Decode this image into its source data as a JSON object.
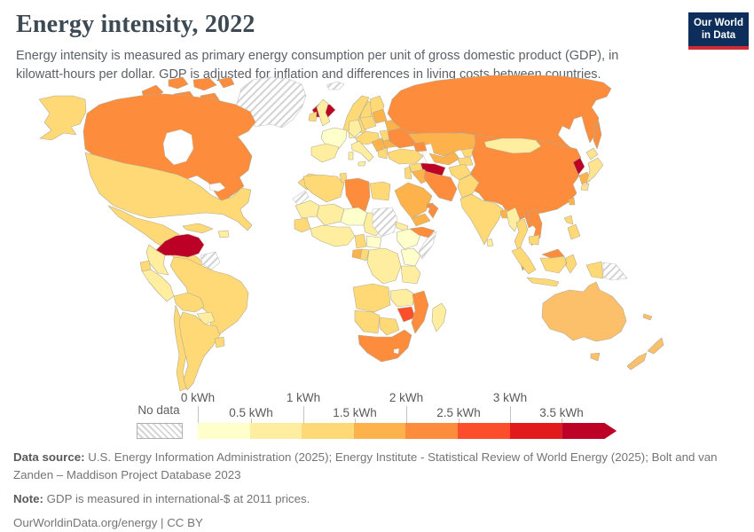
{
  "header": {
    "title": "Energy intensity, 2022",
    "subtitle": "Energy intensity is measured as primary energy consumption per unit of gross domestic product (GDP), in kilowatt-hours per dollar. GDP is adjusted for inflation and differences in living costs between countries.",
    "logo": {
      "line1": "Our World",
      "line2": "in Data",
      "bg_color": "#0d2e5a",
      "accent_color": "#cf2b34"
    }
  },
  "legend": {
    "no_data_label": "No data",
    "ticks": [
      "0 kWh",
      "0.5 kWh",
      "1 kWh",
      "1.5 kWh",
      "2 kWh",
      "2.5 kWh",
      "3 kWh",
      "3.5 kWh"
    ]
  },
  "footer": {
    "data_source_label": "Data source:",
    "data_source_text": " U.S. Energy Information Administration (2025); Energy Institute - Statistical Review of World Energy (2025); Bolt and van Zanden – Maddison Project Database 2023",
    "note_label": "Note:",
    "note_text": " GDP is measured in international-$ at 2011 prices.",
    "link_text": "OurWorldinData.org/energy",
    "separator": " | ",
    "license_text": "CC BY"
  },
  "chart_data": {
    "type": "heatmap",
    "subtype": "choropleth-world-map",
    "title": "Energy intensity, 2022",
    "unit": "kilowatt-hours per dollar (kWh/$)",
    "legend_position": "bottom",
    "bins": [
      {
        "range": "0–0.5 kWh",
        "color": "#ffffcc"
      },
      {
        "range": "0.5–1 kWh",
        "color": "#ffeda0"
      },
      {
        "range": "1–1.5 kWh",
        "color": "#fed976"
      },
      {
        "range": "1.5–2 kWh",
        "color": "#feb24c"
      },
      {
        "range": "2–2.5 kWh",
        "color": "#fd8d3c"
      },
      {
        "range": "2.5–3 kWh",
        "color": "#fc4e2a"
      },
      {
        "range": "3–3.5 kWh",
        "color": "#e31a1c"
      },
      {
        "range": "3.5+ kWh",
        "color": "#bd0026"
      }
    ],
    "no_data_style": "hatch",
    "countries": {
      "greenland": "no-data",
      "svalbard": "no-data",
      "iceland": "#bd0026",
      "canada": "#fd8d3c",
      "canadian-arctic": "#fd8d3c",
      "alaska": "#fed976",
      "usa": "#fed976",
      "mexico": "#fed976",
      "central-america": "#fed976",
      "cuba": "#fed976",
      "hispaniola": "#ffeda0",
      "venezuela": "#bd0026",
      "colombia": "#ffeda0",
      "guyana-suriname": "no-data",
      "brazil": "#fed976",
      "ecuador": "#fed976",
      "peru": "#ffeda0",
      "bolivia": "#fed976",
      "paraguay": "#ffeda0",
      "chile": "#fed976",
      "argentina": "#fed976",
      "uruguay": "#fed976",
      "norway": "#fed976",
      "sweden": "#fed976",
      "finland": "#fed976",
      "denmark": "#ffeda0",
      "united-kingdom": "#ffeda0",
      "ireland": "#fed976",
      "france": "#ffffcc",
      "spain": "#ffeda0",
      "germany": "#ffeda0",
      "poland": "#fed976",
      "central-europe": "#fed976",
      "italy": "#ffeda0",
      "balkans": "#feb24c",
      "romania": "#fed976",
      "bulgaria": "#feb24c",
      "greece": "#fed976",
      "baltics": "#feb24c",
      "belarus": "#feb24c",
      "ukraine": "#fd8d3c",
      "russia": "#fd8d3c",
      "kazakhstan": "#feb24c",
      "uzbekistan": "#feb24c",
      "turkmenistan": "#bd0026",
      "kyrgyzstan": "#fed976",
      "tajikistan": "#fed976",
      "caucasus": "#fd8d3c",
      "turkey": "#fed976",
      "syria": "#fed976",
      "iraq": "#feb24c",
      "jordan-israel": "#fed976",
      "iran": "#fd8d3c",
      "afghanistan": "#fed976",
      "pakistan": "#fed976",
      "saudi-arabia": "#feb24c",
      "yemen": "#feb24c",
      "oman": "#fd8d3c",
      "uae": "#fd8d3c",
      "india": "#fed976",
      "bangladesh": "#feb24c",
      "sri-lanka": "#ffeda0",
      "myanmar": "#ffeda0",
      "thailand": "#fed976",
      "laos": "#fd8d3c",
      "vietnam": "#fd8d3c",
      "cambodia": "#fed976",
      "malaysia": "#fd8d3c",
      "indonesia": "#fed976",
      "china": "#fd8d3c",
      "mongolia": "#ffeda0",
      "north-korea": "#bd0026",
      "south-korea": "#feb24c",
      "japan": "#fee391",
      "taiwan": "#feb24c",
      "philippines": "#fed976",
      "papua-new-guinea": "no-data",
      "morocco": "#fed976",
      "western-sahara": "no-data",
      "algeria": "#fed976",
      "tunisia": "#fed976",
      "libya": "#fd8d3c",
      "egypt": "#fed976",
      "mauritania": "#ffeda0",
      "mali": "#ffeda0",
      "niger": "#ffffcc",
      "chad": "#ffeda0",
      "sudan": "no-data",
      "eritrea": "#ffeda0",
      "ethiopia": "#ffffcc",
      "somaliland": "#fd8d3c",
      "somalia": "no-data",
      "senegal": "#fed976",
      "west-africa": "#ffeda0",
      "cameroon": "#fed976",
      "central-african-republic": "#ffffcc",
      "gabon": "#feb24c",
      "congo": "#fed976",
      "dr-congo": "#ffeda0",
      "uganda-kenya": "#ffffcc",
      "tanzania": "#ffeda0",
      "angola": "#fed976",
      "zambia": "#ffeda0",
      "zimbabwe": "#fc4e2a",
      "mozambique": "#fd8d3c",
      "namibia": "#fed976",
      "botswana": "#fed976",
      "south-africa": "#fd8d3c",
      "madagascar": "#ffeda0",
      "australia": "#fdc06a",
      "new-zealand": "#fdc06a",
      "new-caledonia": "#fdc06a"
    }
  }
}
